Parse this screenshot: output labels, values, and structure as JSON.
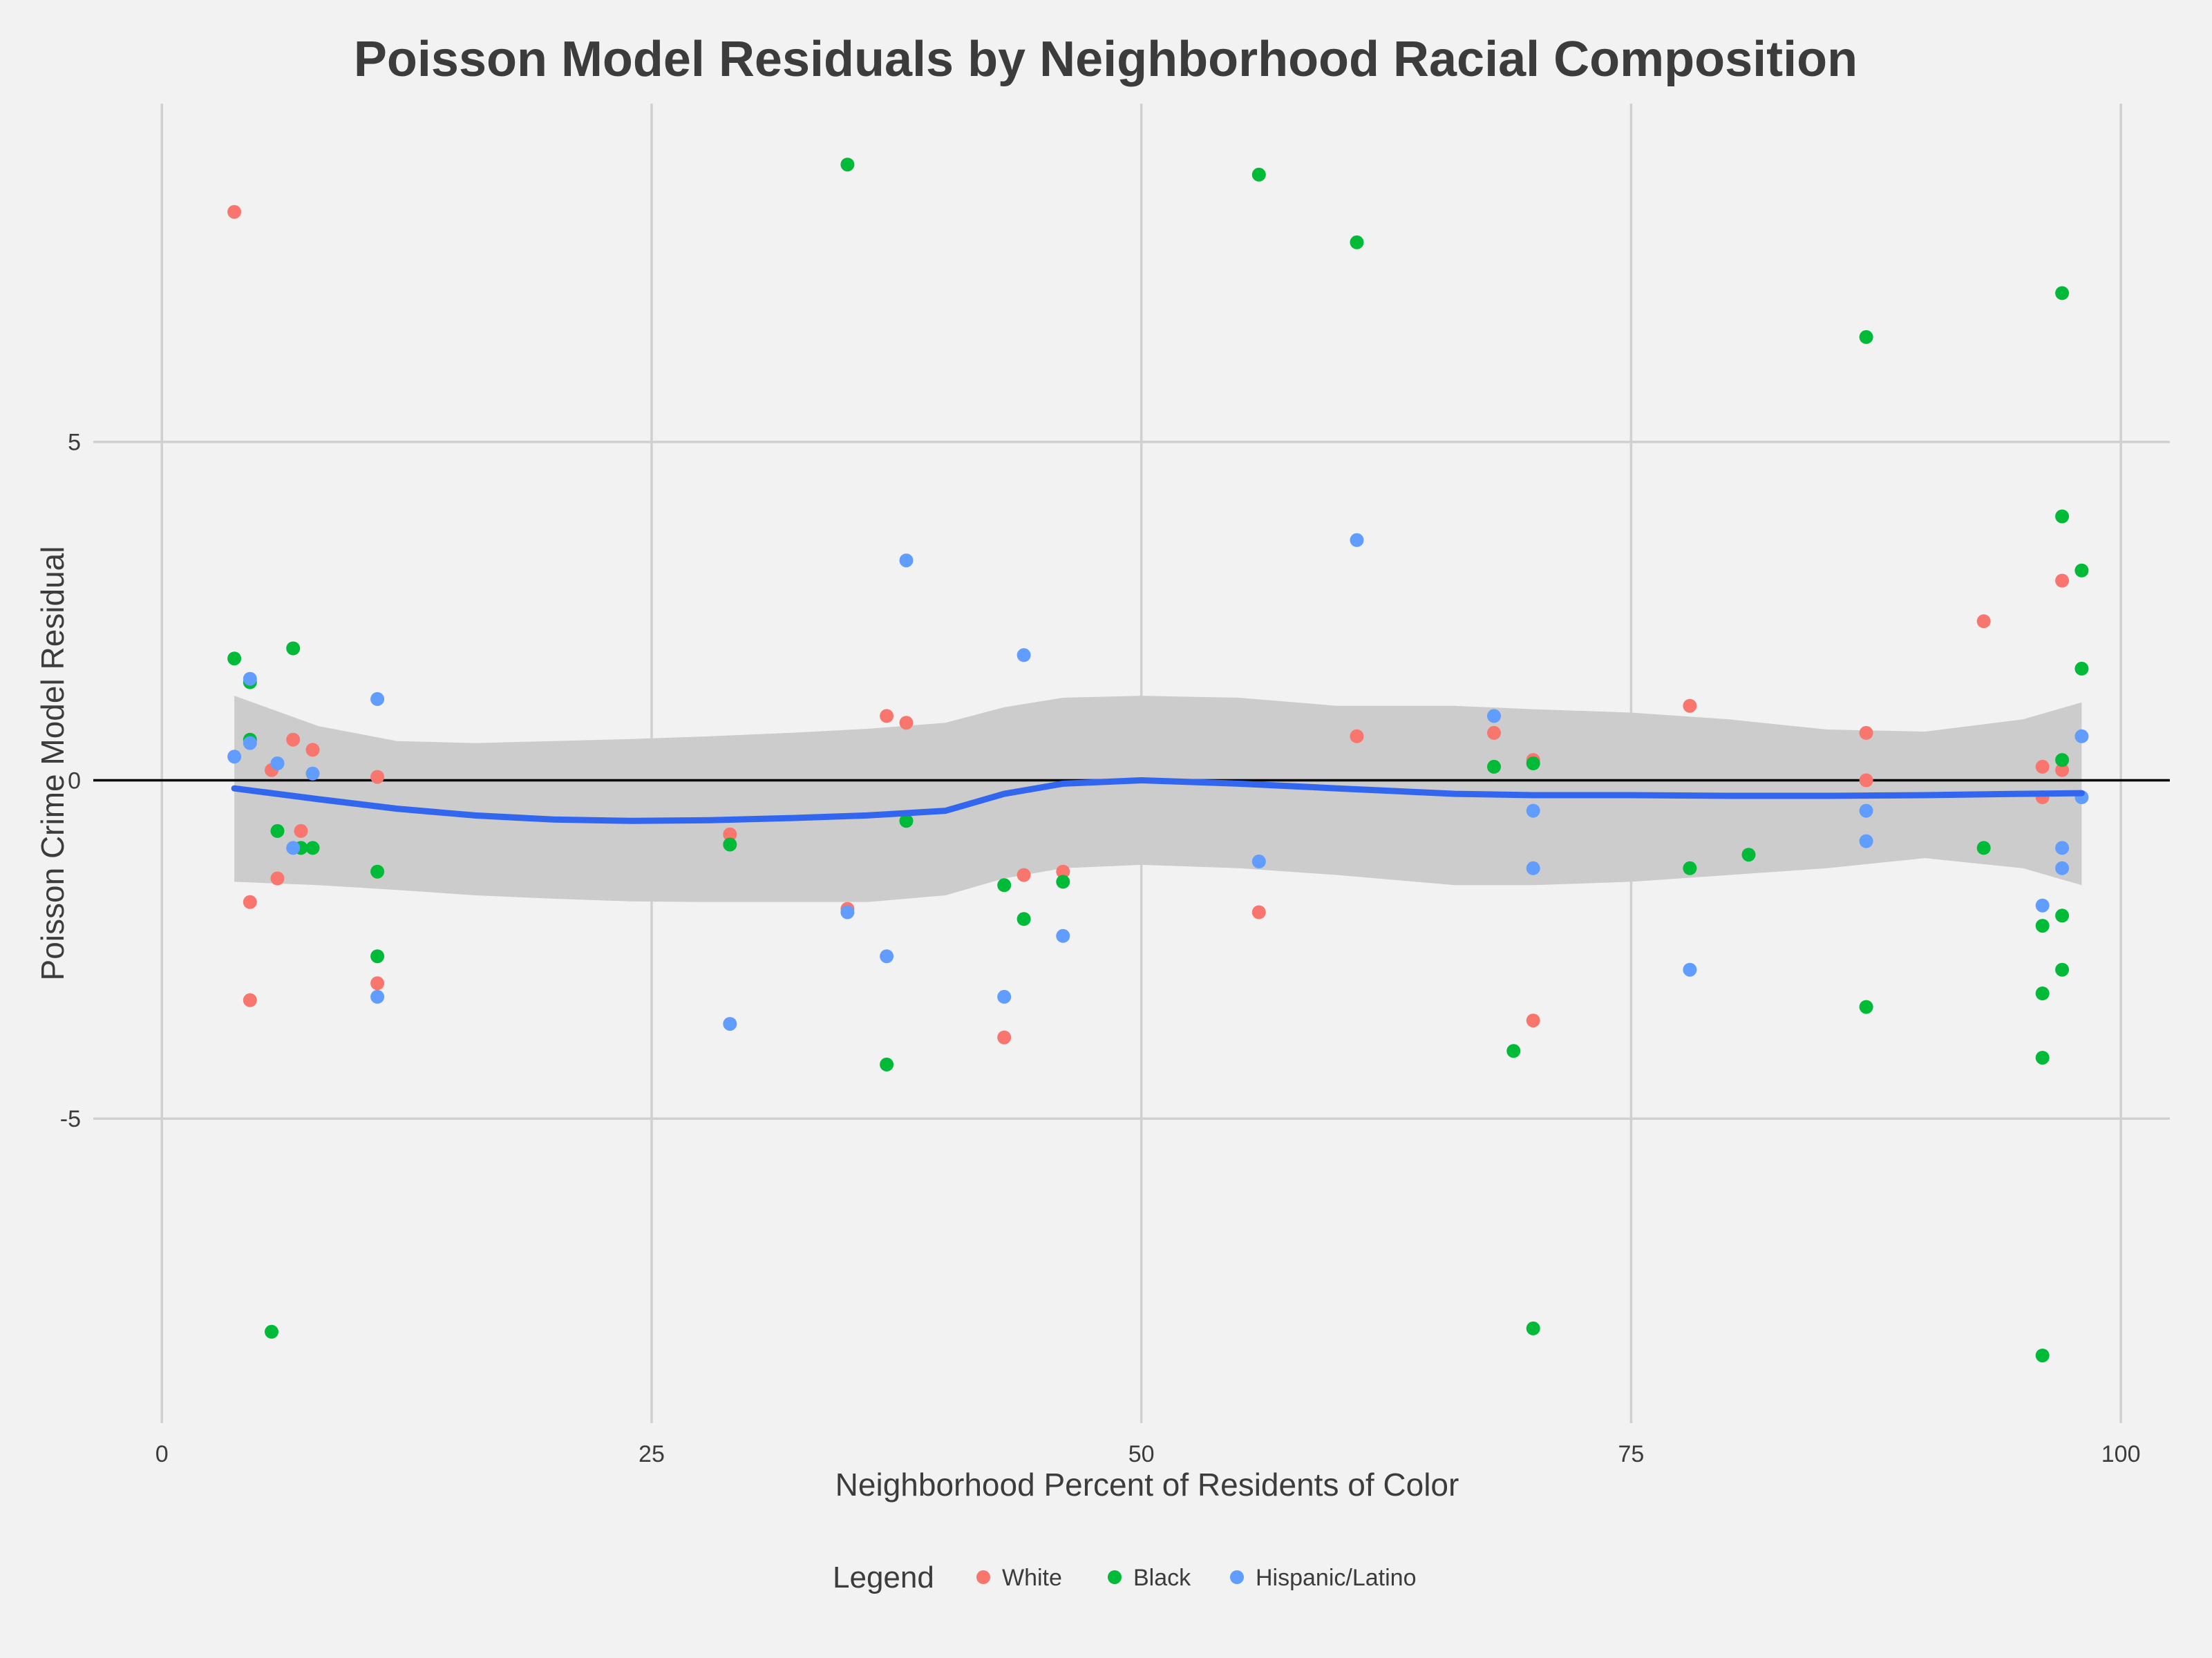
{
  "chart_data": {
    "type": "scatter",
    "title": "Poisson Model Residuals by Neighborhood Racial Composition",
    "xlabel": "Neighborhood Percent of Residents of Color",
    "ylabel": "Poisson Crime Model Residual",
    "xlim": [
      -3.5,
      102.5
    ],
    "ylim": [
      -9.5,
      10
    ],
    "x_ticks": [
      0,
      25,
      50,
      75,
      100
    ],
    "x_tick_labels": [
      "0",
      "25",
      "50",
      "75",
      "100"
    ],
    "y_ticks": [
      -5,
      0,
      5
    ],
    "y_tick_labels": [
      "-5",
      "0",
      "5"
    ],
    "grid": true,
    "reference_line_y": 0,
    "legend": {
      "title": "Legend",
      "position": "bottom",
      "entries": [
        "White",
        "Black",
        "Hispanic/Latino"
      ]
    },
    "colors": {
      "background": "#f2f2f2",
      "grid": "#d0d0d0",
      "reference": "#000000",
      "smooth": "#3366ee",
      "ribbon": "#cccccc",
      "White": "#f8766d",
      "Black": "#00ba38",
      "Hispanic/Latino": "#619cff"
    },
    "series": [
      {
        "name": "White",
        "points": [
          [
            3.7,
            8.4
          ],
          [
            4.5,
            -1.8
          ],
          [
            4.5,
            -3.25
          ],
          [
            5.6,
            0.15
          ],
          [
            5.9,
            -1.45
          ],
          [
            6.7,
            0.6
          ],
          [
            7.1,
            -0.75
          ],
          [
            7.7,
            0.45
          ],
          [
            11.0,
            0.05
          ],
          [
            11.0,
            -3.0
          ],
          [
            29.0,
            -0.8
          ],
          [
            35.0,
            -1.9
          ],
          [
            37.0,
            0.95
          ],
          [
            38.0,
            0.85
          ],
          [
            43.0,
            -3.8
          ],
          [
            44.0,
            -1.4
          ],
          [
            46.0,
            -1.35
          ],
          [
            56.0,
            -1.95
          ],
          [
            61.0,
            0.65
          ],
          [
            68.0,
            0.7
          ],
          [
            70.0,
            0.3
          ],
          [
            70.0,
            -3.55
          ],
          [
            78.0,
            1.1
          ],
          [
            87.0,
            0.7
          ],
          [
            87.0,
            0.0
          ],
          [
            93.0,
            2.35
          ],
          [
            96.0,
            0.2
          ],
          [
            96.0,
            -0.25
          ],
          [
            97.0,
            2.95
          ],
          [
            97.0,
            0.15
          ]
        ]
      },
      {
        "name": "Black",
        "points": [
          [
            3.7,
            1.8
          ],
          [
            4.5,
            1.45
          ],
          [
            4.5,
            0.6
          ],
          [
            5.6,
            -8.15
          ],
          [
            5.9,
            -0.75
          ],
          [
            6.7,
            1.95
          ],
          [
            7.1,
            -1.0
          ],
          [
            7.7,
            -1.0
          ],
          [
            11.0,
            -1.35
          ],
          [
            11.0,
            -2.6
          ],
          [
            29.0,
            -0.95
          ],
          [
            35.0,
            9.1
          ],
          [
            37.0,
            -4.2
          ],
          [
            38.0,
            -0.6
          ],
          [
            43.0,
            -1.55
          ],
          [
            44.0,
            -2.05
          ],
          [
            46.0,
            -1.5
          ],
          [
            56.0,
            8.95
          ],
          [
            61.0,
            7.95
          ],
          [
            68.0,
            0.2
          ],
          [
            69.0,
            -4.0
          ],
          [
            70.0,
            0.25
          ],
          [
            70.0,
            -8.1
          ],
          [
            78.0,
            -1.3
          ],
          [
            81.0,
            -1.1
          ],
          [
            87.0,
            6.55
          ],
          [
            87.0,
            -3.35
          ],
          [
            93.0,
            -1.0
          ],
          [
            96.0,
            -2.15
          ],
          [
            96.0,
            -3.15
          ],
          [
            96.0,
            -4.1
          ],
          [
            96.0,
            -8.5
          ],
          [
            97.0,
            7.2
          ],
          [
            97.0,
            3.9
          ],
          [
            97.0,
            0.3
          ],
          [
            97.0,
            -2.0
          ],
          [
            97.0,
            -2.8
          ],
          [
            98.0,
            3.1
          ],
          [
            98.0,
            1.65
          ]
        ]
      },
      {
        "name": "Hispanic/Latino",
        "points": [
          [
            3.7,
            0.35
          ],
          [
            4.5,
            1.5
          ],
          [
            4.5,
            0.55
          ],
          [
            5.9,
            0.25
          ],
          [
            6.7,
            -1.0
          ],
          [
            7.7,
            0.1
          ],
          [
            11.0,
            1.2
          ],
          [
            11.0,
            -3.2
          ],
          [
            29.0,
            -3.6
          ],
          [
            35.0,
            -1.95
          ],
          [
            37.0,
            -2.6
          ],
          [
            38.0,
            3.25
          ],
          [
            43.0,
            -3.2
          ],
          [
            44.0,
            1.85
          ],
          [
            46.0,
            -2.3
          ],
          [
            56.0,
            -1.2
          ],
          [
            61.0,
            3.55
          ],
          [
            68.0,
            0.95
          ],
          [
            70.0,
            -0.45
          ],
          [
            70.0,
            -1.3
          ],
          [
            78.0,
            -2.8
          ],
          [
            87.0,
            -0.45
          ],
          [
            87.0,
            -0.9
          ],
          [
            96.0,
            -1.85
          ],
          [
            97.0,
            -1.0
          ],
          [
            97.0,
            -1.3
          ],
          [
            98.0,
            0.65
          ],
          [
            98.0,
            -0.25
          ]
        ]
      }
    ],
    "smooth": {
      "method": "loess",
      "x": [
        3.7,
        8,
        12,
        16,
        20,
        24,
        28,
        32,
        36,
        40,
        43,
        46,
        50,
        55,
        60,
        66,
        70,
        75,
        80,
        85,
        90,
        95,
        98
      ],
      "y": [
        -0.12,
        -0.28,
        -0.42,
        -0.52,
        -0.58,
        -0.6,
        -0.59,
        -0.56,
        -0.52,
        -0.45,
        -0.2,
        -0.05,
        0.0,
        -0.05,
        -0.12,
        -0.2,
        -0.22,
        -0.22,
        -0.23,
        -0.23,
        -0.22,
        -0.2,
        -0.19
      ],
      "lower": [
        -1.5,
        -1.55,
        -1.62,
        -1.7,
        -1.75,
        -1.79,
        -1.8,
        -1.8,
        -1.8,
        -1.7,
        -1.45,
        -1.3,
        -1.25,
        -1.3,
        -1.4,
        -1.55,
        -1.55,
        -1.5,
        -1.4,
        -1.3,
        -1.15,
        -1.3,
        -1.55
      ],
      "upper": [
        1.25,
        0.8,
        0.58,
        0.55,
        0.58,
        0.61,
        0.65,
        0.7,
        0.76,
        0.85,
        1.08,
        1.22,
        1.25,
        1.22,
        1.1,
        1.1,
        1.05,
        1.0,
        0.9,
        0.75,
        0.72,
        0.9,
        1.15
      ]
    }
  }
}
